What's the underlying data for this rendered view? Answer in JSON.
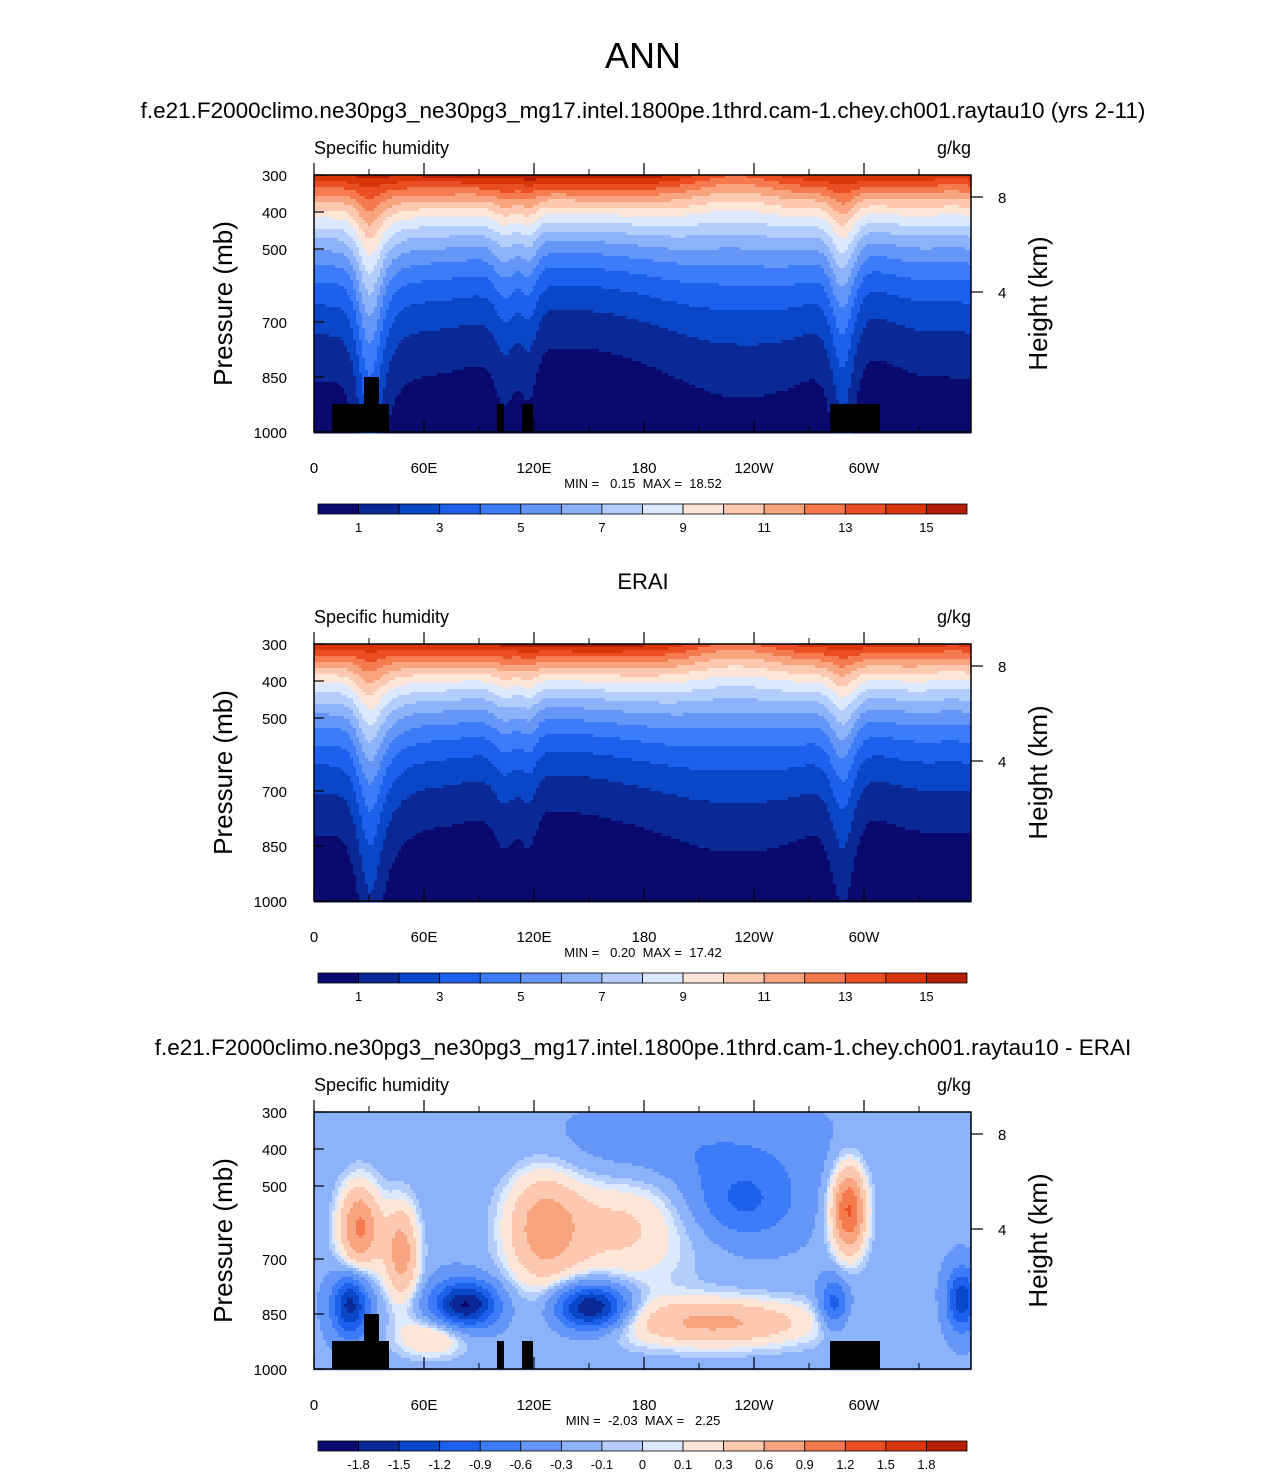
{
  "figure": {
    "title": "ANN",
    "colors": {
      "abs_palette": [
        "#0a0a6e",
        "#0a2896",
        "#0a46c8",
        "#1e60ee",
        "#3c7cf8",
        "#6496f8",
        "#8cb2fa",
        "#b4cefc",
        "#dce8fe",
        "#fde6d8",
        "#fcc8b0",
        "#f8a47e",
        "#f57a4e",
        "#ec4e24",
        "#d9360c",
        "#b41e06",
        "#8c0a0a"
      ],
      "diff_palette": [
        "#0a0a6e",
        "#0a2896",
        "#0a46c8",
        "#1e60ee",
        "#3c7cf8",
        "#6496f8",
        "#8cb2fa",
        "#b4cefc",
        "#dce8fe",
        "#fde6d8",
        "#fcc8b0",
        "#f8a47e",
        "#f57a4e",
        "#ec4e24",
        "#d9360c",
        "#b41e06",
        "#8c0a0a"
      ],
      "terrain": "#000000"
    }
  },
  "chart_data": [
    {
      "type": "heatmap",
      "panel_title": "f.e21.F2000climo.ne30pg3_ne30pg3_mg17.intel.1800pe.1thrd.cam-1.chey.ch001.raytau10 (yrs 2-11)",
      "left_label": "Specific humidity",
      "right_label": "g/kg",
      "ylabel": "Pressure (mb)",
      "y2label": "Height (km)",
      "yticks": [
        "300",
        "400",
        "500",
        "700",
        "850",
        "1000"
      ],
      "y2ticks": [
        "8",
        "4"
      ],
      "xticks": [
        "0",
        "60E",
        "120E",
        "180",
        "120W",
        "60W"
      ],
      "stats": "MIN =   0.15  MAX =  18.52",
      "colorbar_labels": [
        "1",
        "3",
        "5",
        "7",
        "9",
        "11",
        "13",
        "15"
      ],
      "field": "model",
      "min": 0.15,
      "max": 18.52
    },
    {
      "type": "heatmap",
      "panel_title": "ERAI",
      "left_label": "Specific humidity",
      "right_label": "g/kg",
      "ylabel": "Pressure (mb)",
      "y2label": "Height (km)",
      "yticks": [
        "300",
        "400",
        "500",
        "700",
        "850",
        "1000"
      ],
      "y2ticks": [
        "8",
        "4"
      ],
      "xticks": [
        "0",
        "60E",
        "120E",
        "180",
        "120W",
        "60W"
      ],
      "stats": "MIN =   0.20  MAX =  17.42",
      "colorbar_labels": [
        "1",
        "3",
        "5",
        "7",
        "9",
        "11",
        "13",
        "15"
      ],
      "field": "obs",
      "min": 0.2,
      "max": 17.42
    },
    {
      "type": "heatmap",
      "panel_title": "f.e21.F2000climo.ne30pg3_ne30pg3_mg17.intel.1800pe.1thrd.cam-1.chey.ch001.raytau10 - ERAI",
      "left_label": "Specific humidity",
      "right_label": "g/kg",
      "ylabel": "Pressure (mb)",
      "y2label": "Height (km)",
      "yticks": [
        "300",
        "400",
        "500",
        "700",
        "850",
        "1000"
      ],
      "y2ticks": [
        "8",
        "4"
      ],
      "xticks": [
        "0",
        "60E",
        "120E",
        "180",
        "120W",
        "60W"
      ],
      "stats": "MIN =  -2.03  MAX =   2.25",
      "colorbar_labels": [
        "-1.8",
        "-1.5",
        "-1.2",
        "-0.9",
        "-0.6",
        "-0.3",
        "-0.1",
        "0",
        "0.1",
        "0.3",
        "0.6",
        "0.9",
        "1.2",
        "1.5",
        "1.8"
      ],
      "field": "diff",
      "min": -2.03,
      "max": 2.25
    }
  ]
}
